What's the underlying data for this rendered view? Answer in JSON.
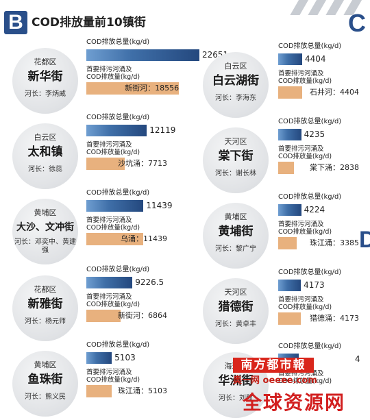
{
  "header": {
    "letter": "B",
    "title": "COD排放量前10镇街",
    "corner_letter_c": "C",
    "edge_letter_d": "D"
  },
  "labels": {
    "total": "COD排放总量(kg/d)",
    "river_line1": "首要排污河涌及",
    "river_line2": "COD排放量(kg/d)"
  },
  "watermark": {
    "brand": "南方都市報",
    "site": "奥一网 oeeee.com",
    "big": "全球资源网"
  },
  "chart_data": {
    "type": "bar",
    "title": "COD排放量前10镇街",
    "unit": "kg/d",
    "entries": [
      {
        "district": "花都区",
        "street": "新华街",
        "chief": "河长：李炳威",
        "total": 22651,
        "total_label": "22651",
        "river": "新街河",
        "river_value": 18556,
        "river_label": "新街河：18556"
      },
      {
        "district": "白云区",
        "street": "太和镇",
        "chief": "河长：徐蕊",
        "total": 12119,
        "total_label": "12119",
        "river": "沙坑涌",
        "river_value": 7713,
        "river_label": "沙坑涌：7713"
      },
      {
        "district": "黄埔区",
        "street": "大沙、文冲街",
        "chief": "河长：邓奕中、黄建强",
        "total": 11439,
        "total_label": "11439",
        "river": "乌涌",
        "river_value": 11439,
        "river_label": "乌涌：11439"
      },
      {
        "district": "花都区",
        "street": "新雅街",
        "chief": "河长：杨元师",
        "total": 9226.5,
        "total_label": "9226.5",
        "river": "新街河",
        "river_value": 6864,
        "river_label": "新街河：6864"
      },
      {
        "district": "黄埔区",
        "street": "鱼珠街",
        "chief": "河长：熊义民",
        "total": 5103,
        "total_label": "5103",
        "river": "珠江涌",
        "river_value": 5103,
        "river_label": "珠江涌：5103"
      },
      {
        "district": "白云区",
        "street": "白云湖街",
        "chief": "河长：李海东",
        "total": 4404,
        "total_label": "4404",
        "river": "石井河",
        "river_value": 4404,
        "river_label": "石井河：4404"
      },
      {
        "district": "天河区",
        "street": "棠下街",
        "chief": "河长：谢长林",
        "total": 4235,
        "total_label": "4235",
        "river": "棠下涌",
        "river_value": 2838,
        "river_label": "棠下涌：2838"
      },
      {
        "district": "黄埔区",
        "street": "黄埔街",
        "chief": "河长：黎广宁",
        "total": 4224,
        "total_label": "4224",
        "river": "珠江涌",
        "river_value": 3385,
        "river_label": "珠江涌：3385"
      },
      {
        "district": "天河区",
        "street": "猎德街",
        "chief": "河长：黄卓丰",
        "total": 4173,
        "total_label": "4173",
        "river": "猎德涌",
        "river_value": 4173,
        "river_label": "猎德涌：4173"
      },
      {
        "district": "海珠区",
        "street": "华洲街",
        "chief": "河长：刘敬",
        "total": null,
        "total_label": "4",
        "river": null,
        "river_value": null,
        "river_label": ""
      }
    ]
  }
}
